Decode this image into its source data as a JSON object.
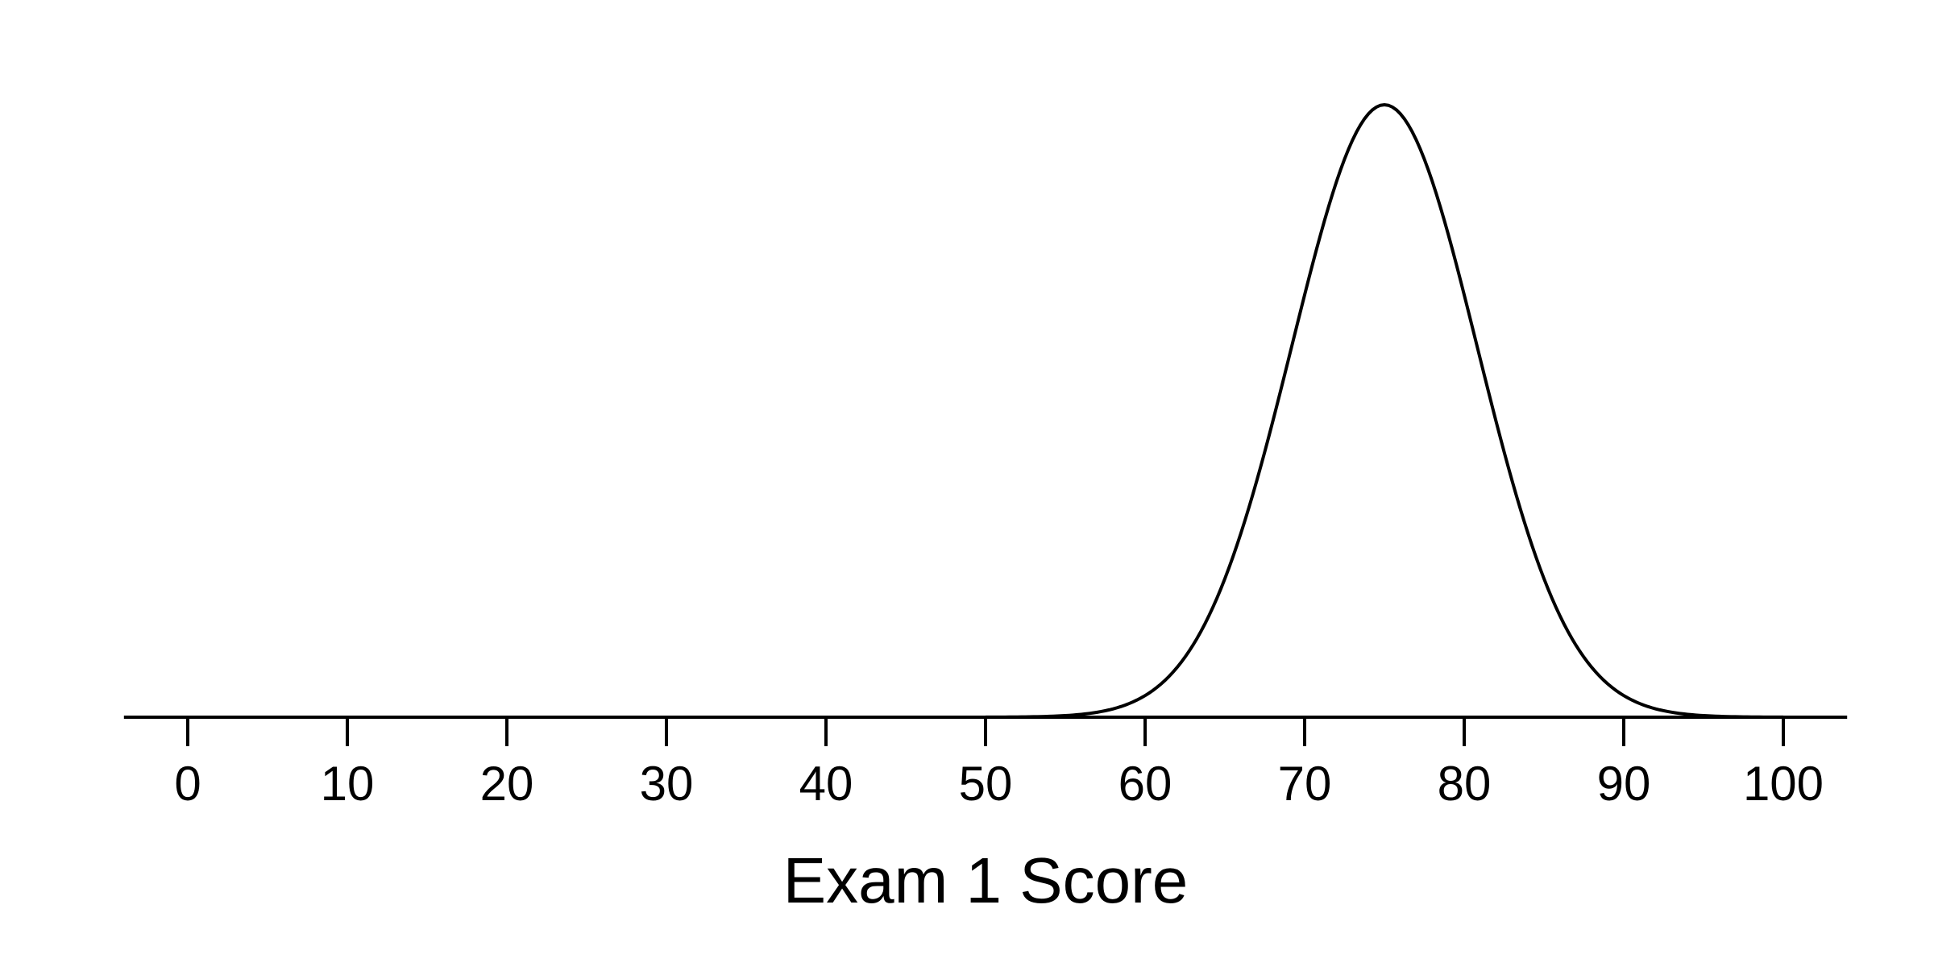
{
  "chart_data": {
    "type": "line",
    "title": "",
    "xlabel": "Exam 1 Score",
    "ylabel": "",
    "xlim": [
      -4,
      104
    ],
    "xticks": [
      0,
      10,
      20,
      30,
      40,
      50,
      60,
      70,
      80,
      90,
      100
    ],
    "tick_labels": [
      "0",
      "10",
      "20",
      "30",
      "40",
      "50",
      "60",
      "70",
      "80",
      "90",
      "100"
    ],
    "grid": false,
    "legend": "none",
    "series": [
      {
        "name": "Normal density curve",
        "distribution": "normal",
        "mean": 75,
        "sd": 5.8,
        "color": "#000000"
      }
    ]
  }
}
